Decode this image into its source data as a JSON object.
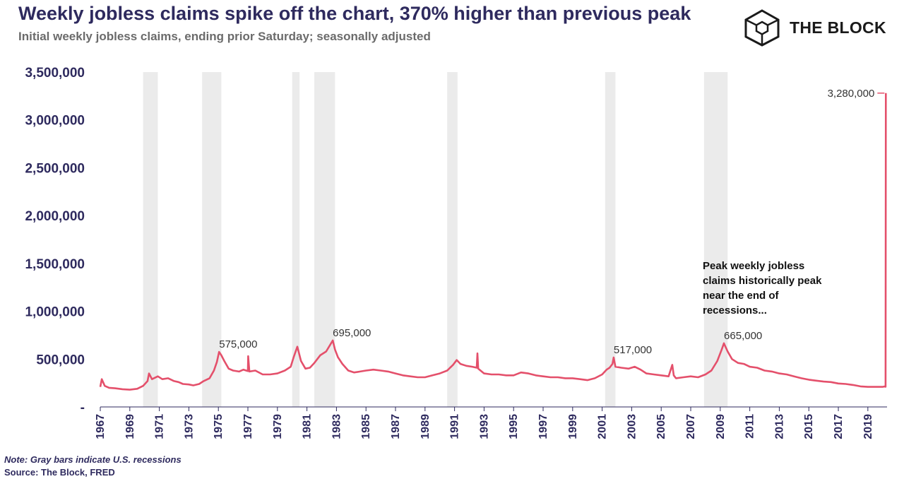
{
  "header": {
    "title": "Weekly jobless claims spike off the chart, 370% higher than previous peak",
    "subtitle": "Initial weekly jobless claims, ending prior Saturday; seasonally adjusted"
  },
  "brand": {
    "name": "THE BLOCK",
    "icon": "cube-logo-icon"
  },
  "footer": {
    "note": "Note: Gray bars indicate U.S. recessions",
    "source": "Source: The Block, FRED"
  },
  "colors": {
    "line": "#e4506b",
    "recession": "#ebebeb",
    "text": "#2e2a5e"
  },
  "chart_data": {
    "type": "line",
    "title": "Weekly jobless claims spike off the chart, 370% higher than previous peak",
    "subtitle": "Initial weekly jobless claims, ending prior Saturday; seasonally adjusted",
    "xlabel": "",
    "ylabel": "",
    "xlim": [
      1967.0,
      2020.3
    ],
    "ylim": [
      0,
      3500000
    ],
    "y_ticks": [
      0,
      500000,
      1000000,
      1500000,
      2000000,
      2500000,
      3000000,
      3500000
    ],
    "y_tick_labels": [
      "-",
      "500,000",
      "1,000,000",
      "1,500,000",
      "2,000,000",
      "2,500,000",
      "3,000,000",
      "3,500,000"
    ],
    "x_tick_labels": [
      "1967",
      "1969",
      "1971",
      "1973",
      "1975",
      "1977",
      "1979",
      "1981",
      "1983",
      "1985",
      "1987",
      "1989",
      "1991",
      "1993",
      "1995",
      "1997",
      "1999",
      "2001",
      "2003",
      "2005",
      "2007",
      "2009",
      "2011",
      "2013",
      "2015",
      "2017",
      "2019"
    ],
    "x_tick_values": [
      1967,
      1969,
      1971,
      1973,
      1975,
      1977,
      1979,
      1981,
      1983,
      1985,
      1987,
      1989,
      1991,
      1993,
      1995,
      1997,
      1999,
      2001,
      2003,
      2005,
      2007,
      2009,
      2011,
      2013,
      2015,
      2017,
      2019
    ],
    "grid": false,
    "legend": "none",
    "recessions": [
      [
        1969.9,
        1970.9
      ],
      [
        1973.9,
        1975.2
      ],
      [
        1980.0,
        1980.5
      ],
      [
        1981.5,
        1982.9
      ],
      [
        1990.5,
        1991.2
      ],
      [
        2001.2,
        2001.9
      ],
      [
        2007.9,
        2009.5
      ]
    ],
    "series": [
      {
        "values": [
          [
            1967.0,
            210000
          ],
          [
            1967.1,
            290000
          ],
          [
            1967.3,
            220000
          ],
          [
            1967.6,
            200000
          ],
          [
            1968.0,
            195000
          ],
          [
            1968.5,
            185000
          ],
          [
            1969.0,
            180000
          ],
          [
            1969.5,
            190000
          ],
          [
            1969.9,
            220000
          ],
          [
            1970.2,
            270000
          ],
          [
            1970.3,
            350000
          ],
          [
            1970.5,
            290000
          ],
          [
            1970.9,
            320000
          ],
          [
            1971.2,
            290000
          ],
          [
            1971.6,
            300000
          ],
          [
            1972.0,
            270000
          ],
          [
            1972.3,
            260000
          ],
          [
            1972.6,
            240000
          ],
          [
            1973.0,
            235000
          ],
          [
            1973.3,
            225000
          ],
          [
            1973.7,
            240000
          ],
          [
            1974.0,
            270000
          ],
          [
            1974.4,
            300000
          ],
          [
            1974.7,
            380000
          ],
          [
            1974.9,
            470000
          ],
          [
            1975.05,
            575000
          ],
          [
            1975.2,
            540000
          ],
          [
            1975.4,
            480000
          ],
          [
            1975.7,
            400000
          ],
          [
            1976.0,
            380000
          ],
          [
            1976.4,
            370000
          ],
          [
            1976.7,
            390000
          ],
          [
            1977.0,
            375000
          ],
          [
            1977.02,
            530000
          ],
          [
            1977.1,
            370000
          ],
          [
            1977.5,
            380000
          ],
          [
            1978.0,
            340000
          ],
          [
            1978.5,
            340000
          ],
          [
            1979.0,
            350000
          ],
          [
            1979.5,
            380000
          ],
          [
            1979.9,
            420000
          ],
          [
            1980.1,
            520000
          ],
          [
            1980.35,
            630000
          ],
          [
            1980.6,
            480000
          ],
          [
            1980.9,
            400000
          ],
          [
            1981.2,
            410000
          ],
          [
            1981.5,
            460000
          ],
          [
            1981.9,
            540000
          ],
          [
            1982.3,
            580000
          ],
          [
            1982.75,
            695000
          ],
          [
            1982.9,
            600000
          ],
          [
            1983.1,
            520000
          ],
          [
            1983.4,
            450000
          ],
          [
            1983.8,
            380000
          ],
          [
            1984.2,
            360000
          ],
          [
            1984.6,
            370000
          ],
          [
            1985.0,
            380000
          ],
          [
            1985.5,
            390000
          ],
          [
            1986.0,
            380000
          ],
          [
            1986.5,
            370000
          ],
          [
            1987.0,
            350000
          ],
          [
            1987.5,
            330000
          ],
          [
            1988.0,
            320000
          ],
          [
            1988.5,
            310000
          ],
          [
            1989.0,
            310000
          ],
          [
            1989.5,
            330000
          ],
          [
            1990.0,
            350000
          ],
          [
            1990.5,
            380000
          ],
          [
            1990.9,
            440000
          ],
          [
            1991.15,
            490000
          ],
          [
            1991.4,
            450000
          ],
          [
            1991.8,
            430000
          ],
          [
            1992.2,
            420000
          ],
          [
            1992.5,
            410000
          ],
          [
            1992.55,
            560000
          ],
          [
            1992.6,
            400000
          ],
          [
            1993.0,
            350000
          ],
          [
            1993.5,
            340000
          ],
          [
            1994.0,
            340000
          ],
          [
            1994.5,
            330000
          ],
          [
            1995.0,
            330000
          ],
          [
            1995.5,
            360000
          ],
          [
            1996.0,
            350000
          ],
          [
            1996.5,
            330000
          ],
          [
            1997.0,
            320000
          ],
          [
            1997.5,
            310000
          ],
          [
            1998.0,
            310000
          ],
          [
            1998.5,
            300000
          ],
          [
            1999.0,
            300000
          ],
          [
            1999.5,
            290000
          ],
          [
            2000.0,
            280000
          ],
          [
            2000.5,
            300000
          ],
          [
            2001.0,
            340000
          ],
          [
            2001.3,
            390000
          ],
          [
            2001.5,
            410000
          ],
          [
            2001.7,
            450000
          ],
          [
            2001.78,
            517000
          ],
          [
            2001.9,
            420000
          ],
          [
            2002.3,
            410000
          ],
          [
            2002.8,
            400000
          ],
          [
            2003.2,
            420000
          ],
          [
            2003.6,
            390000
          ],
          [
            2004.0,
            350000
          ],
          [
            2004.5,
            340000
          ],
          [
            2005.0,
            330000
          ],
          [
            2005.5,
            320000
          ],
          [
            2005.75,
            440000
          ],
          [
            2005.85,
            330000
          ],
          [
            2006.0,
            300000
          ],
          [
            2006.5,
            310000
          ],
          [
            2007.0,
            320000
          ],
          [
            2007.5,
            310000
          ],
          [
            2008.0,
            340000
          ],
          [
            2008.4,
            380000
          ],
          [
            2008.8,
            480000
          ],
          [
            2009.1,
            600000
          ],
          [
            2009.25,
            665000
          ],
          [
            2009.5,
            580000
          ],
          [
            2009.8,
            500000
          ],
          [
            2010.2,
            460000
          ],
          [
            2010.6,
            450000
          ],
          [
            2011.0,
            420000
          ],
          [
            2011.5,
            410000
          ],
          [
            2012.0,
            380000
          ],
          [
            2012.5,
            370000
          ],
          [
            2013.0,
            350000
          ],
          [
            2013.5,
            340000
          ],
          [
            2014.0,
            320000
          ],
          [
            2014.5,
            300000
          ],
          [
            2015.0,
            285000
          ],
          [
            2015.5,
            275000
          ],
          [
            2016.0,
            265000
          ],
          [
            2016.5,
            260000
          ],
          [
            2017.0,
            245000
          ],
          [
            2017.5,
            240000
          ],
          [
            2018.0,
            230000
          ],
          [
            2018.5,
            215000
          ],
          [
            2019.0,
            210000
          ],
          [
            2019.5,
            210000
          ],
          [
            2020.0,
            210000
          ],
          [
            2020.15,
            215000
          ],
          [
            2020.2,
            211000
          ],
          [
            2020.22,
            3280000
          ]
        ]
      }
    ],
    "data_labels": [
      {
        "x": 1975.05,
        "y": 575000,
        "text": "575,000"
      },
      {
        "x": 1982.75,
        "y": 695000,
        "text": "695,000"
      },
      {
        "x": 2001.78,
        "y": 517000,
        "text": "517,000"
      },
      {
        "x": 2009.25,
        "y": 665000,
        "text": "665,000"
      },
      {
        "x": 2020.22,
        "y": 3280000,
        "text": "3,280,000"
      }
    ],
    "annotation": [
      "Peak weekly jobless",
      "claims historically peak",
      "near the end of",
      "recessions..."
    ]
  }
}
